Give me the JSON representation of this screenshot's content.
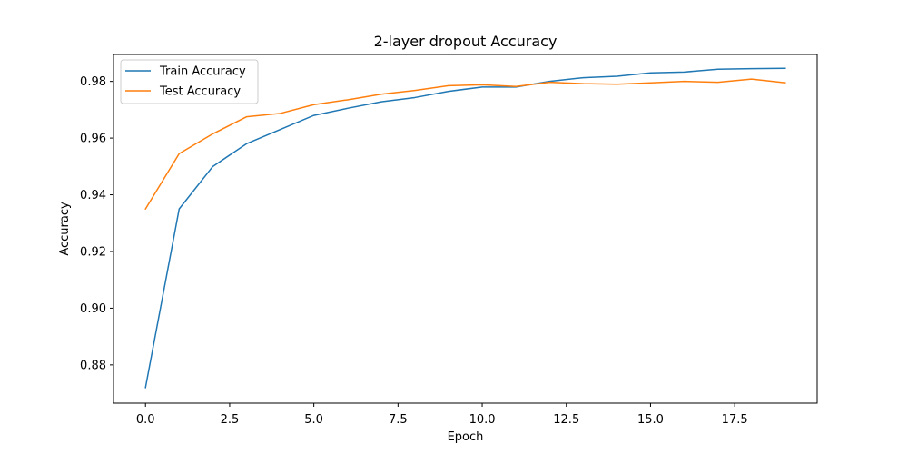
{
  "chart_data": {
    "type": "line",
    "title": "2-layer dropout Accuracy",
    "xlabel": "Epoch",
    "ylabel": "Accuracy",
    "xlim": [
      -0.95,
      19.95
    ],
    "ylim": [
      0.8665,
      0.9895
    ],
    "xticks": [
      0.0,
      2.5,
      5.0,
      7.5,
      10.0,
      12.5,
      15.0,
      17.5
    ],
    "xtick_labels": [
      "0.0",
      "2.5",
      "5.0",
      "7.5",
      "10.0",
      "12.5",
      "15.0",
      "17.5"
    ],
    "yticks": [
      0.88,
      0.9,
      0.92,
      0.94,
      0.96,
      0.98
    ],
    "ytick_labels": [
      "0.88",
      "0.90",
      "0.92",
      "0.94",
      "0.96",
      "0.98"
    ],
    "legend_position": "top-left",
    "grid": false,
    "x": [
      0,
      1,
      2,
      3,
      4,
      5,
      6,
      7,
      8,
      9,
      10,
      11,
      12,
      13,
      14,
      15,
      16,
      17,
      18,
      19
    ],
    "series": [
      {
        "name": "Train Accuracy",
        "color": "#1f77b4",
        "values": [
          0.872,
          0.935,
          0.95,
          0.958,
          0.963,
          0.968,
          0.9705,
          0.9728,
          0.9743,
          0.9765,
          0.978,
          0.978,
          0.98,
          0.9813,
          0.9818,
          0.983,
          0.9833,
          0.9843,
          0.9845,
          0.9846
        ]
      },
      {
        "name": "Test Accuracy",
        "color": "#ff7f0e",
        "values": [
          0.935,
          0.9545,
          0.9615,
          0.9675,
          0.9687,
          0.9718,
          0.9735,
          0.9755,
          0.9768,
          0.9785,
          0.9788,
          0.9782,
          0.9797,
          0.9792,
          0.979,
          0.9795,
          0.98,
          0.9797,
          0.9808,
          0.9795
        ]
      }
    ]
  }
}
